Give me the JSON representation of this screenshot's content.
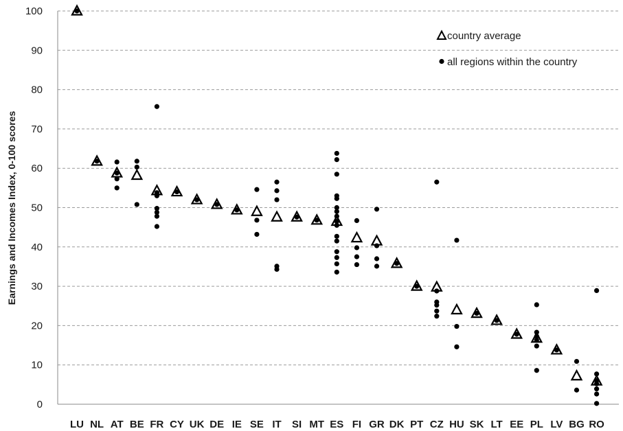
{
  "chart_data": {
    "type": "scatter",
    "ylabel": "Earnings and Incomes Index, 0-100 scores",
    "xlabel": "",
    "ylim": [
      0,
      100
    ],
    "yticks": [
      "0",
      "10",
      "20",
      "30",
      "40",
      "50",
      "60",
      "70",
      "80",
      "90",
      "100"
    ],
    "grid": true,
    "legend_position": "top-right",
    "categories": [
      "LU",
      "NL",
      "AT",
      "BE",
      "FR",
      "CY",
      "UK",
      "DE",
      "IE",
      "SE",
      "IT",
      "SI",
      "MT",
      "ES",
      "FI",
      "GR",
      "DK",
      "PT",
      "CZ",
      "HU",
      "SK",
      "LT",
      "EE",
      "PL",
      "LV",
      "BG",
      "RO"
    ],
    "series": [
      {
        "name": "country average",
        "marker": "triangle-open",
        "values": [
          100,
          61.8,
          58.8,
          58.2,
          54.3,
          54.0,
          52.0,
          50.8,
          49.4,
          49.0,
          47.6,
          47.6,
          46.8,
          46.5,
          42.3,
          41.5,
          35.8,
          30.0,
          29.8,
          24.0,
          23.1,
          21.3,
          17.8,
          16.8,
          13.8,
          7.2,
          5.9
        ]
      },
      {
        "name": "all regions within the country",
        "marker": "dot",
        "points": [
          [
            "LU",
            100
          ],
          [
            "NL",
            61.8
          ],
          [
            "AT",
            61.6
          ],
          [
            "AT",
            58.8
          ],
          [
            "AT",
            57.3
          ],
          [
            "AT",
            55.0
          ],
          [
            "BE",
            61.8
          ],
          [
            "BE",
            60.3
          ],
          [
            "BE",
            50.8
          ],
          [
            "FR",
            75.7
          ],
          [
            "FR",
            53.8
          ],
          [
            "FR",
            53.0
          ],
          [
            "FR",
            49.8
          ],
          [
            "FR",
            48.8
          ],
          [
            "FR",
            47.8
          ],
          [
            "FR",
            45.2
          ],
          [
            "CY",
            54.0
          ],
          [
            "UK",
            52.0
          ],
          [
            "DE",
            50.8
          ],
          [
            "IE",
            49.4
          ],
          [
            "SE",
            54.6
          ],
          [
            "SE",
            46.8
          ],
          [
            "SE",
            43.2
          ],
          [
            "IT",
            56.5
          ],
          [
            "IT",
            54.3
          ],
          [
            "IT",
            52.0
          ],
          [
            "IT",
            35.1
          ],
          [
            "IT",
            34.3
          ],
          [
            "SI",
            47.6
          ],
          [
            "MT",
            46.8
          ],
          [
            "ES",
            63.8
          ],
          [
            "ES",
            62.2
          ],
          [
            "ES",
            58.5
          ],
          [
            "ES",
            53.0
          ],
          [
            "ES",
            52.3
          ],
          [
            "ES",
            50.0
          ],
          [
            "ES",
            49.0
          ],
          [
            "ES",
            47.8
          ],
          [
            "ES",
            46.5
          ],
          [
            "ES",
            45.5
          ],
          [
            "ES",
            42.7
          ],
          [
            "ES",
            41.5
          ],
          [
            "ES",
            38.8
          ],
          [
            "ES",
            37.3
          ],
          [
            "ES",
            35.7
          ],
          [
            "ES",
            33.6
          ],
          [
            "FI",
            46.7
          ],
          [
            "FI",
            39.8
          ],
          [
            "FI",
            37.5
          ],
          [
            "FI",
            35.5
          ],
          [
            "GR",
            49.6
          ],
          [
            "GR",
            40.3
          ],
          [
            "GR",
            37.0
          ],
          [
            "GR",
            35.1
          ],
          [
            "DK",
            35.8
          ],
          [
            "PT",
            30.0
          ],
          [
            "CZ",
            56.5
          ],
          [
            "CZ",
            28.8
          ],
          [
            "CZ",
            26.0
          ],
          [
            "CZ",
            25.2
          ],
          [
            "CZ",
            23.7
          ],
          [
            "CZ",
            22.4
          ],
          [
            "HU",
            41.7
          ],
          [
            "HU",
            19.8
          ],
          [
            "HU",
            14.6
          ],
          [
            "SK",
            23.1
          ],
          [
            "LT",
            21.3
          ],
          [
            "EE",
            17.8
          ],
          [
            "PL",
            25.3
          ],
          [
            "PL",
            18.3
          ],
          [
            "PL",
            17.3
          ],
          [
            "PL",
            16.3
          ],
          [
            "PL",
            14.8
          ],
          [
            "PL",
            8.6
          ],
          [
            "LV",
            13.8
          ],
          [
            "BG",
            10.9
          ],
          [
            "BG",
            3.6
          ],
          [
            "RO",
            28.9
          ],
          [
            "RO",
            7.7
          ],
          [
            "RO",
            6.0
          ],
          [
            "RO",
            5.2
          ],
          [
            "RO",
            3.9
          ],
          [
            "RO",
            2.6
          ],
          [
            "RO",
            0.2
          ]
        ]
      }
    ]
  }
}
